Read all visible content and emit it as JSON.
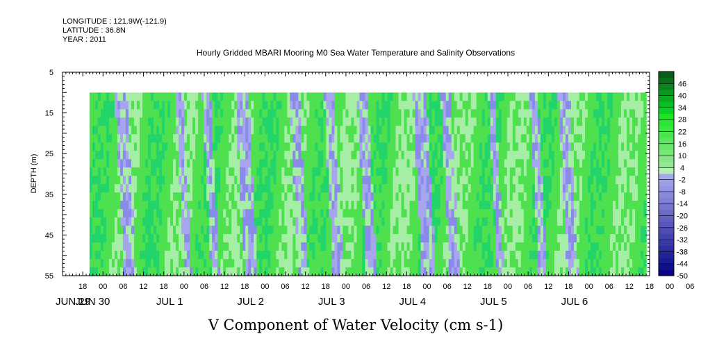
{
  "header": {
    "longitude": "LONGITUDE : 121.9W(-121.9)",
    "latitude": "LATITUDE : 36.8N",
    "year": "YEAR : 2011"
  },
  "chart_data": {
    "type": "heatmap",
    "title": "Hourly Gridded MBARI Mooring M0 Sea Water Temperature and Salinity Observations",
    "xlabel": "V Component of Water Velocity (cm s-1)",
    "ylabel": "DEPTH (m)",
    "y_ticks": [
      "5",
      "15",
      "25",
      "35",
      "45",
      "55"
    ],
    "ylim": [
      5,
      55
    ],
    "y_inverted": true,
    "hour_ticks": [
      "18",
      "00",
      "06",
      "12",
      "18",
      "00",
      "06",
      "12",
      "18",
      "00",
      "06",
      "12",
      "18",
      "00",
      "06",
      "12",
      "18",
      "00",
      "06",
      "12",
      "18",
      "00",
      "06",
      "12",
      "18",
      "00",
      "06",
      "12",
      "18",
      "00",
      "06",
      "12"
    ],
    "date_labels": [
      "JUN 29",
      "JUN 30",
      "JUL 1",
      "JUL 2",
      "JUL 3",
      "JUL 4",
      "JUL 5",
      "JUL 6"
    ],
    "x_start": "2011-06-29 12:00",
    "x_end": "2011-07-06 18:00",
    "data_start": "2011-06-29 20:00",
    "data_end": "2011-07-06 17:00",
    "data_depth_range": [
      10,
      55
    ],
    "colorbar_labels": [
      "46",
      "40",
      "34",
      "28",
      "22",
      "16",
      "10",
      "4",
      "-2",
      "-8",
      "-14",
      "-20",
      "-26",
      "-32",
      "-38",
      "-44",
      "-50"
    ],
    "colorbar_range": [
      -50,
      52
    ],
    "colors": {
      "neg_light": "#a6a6ee",
      "pos_light": "#a6eea6",
      "pos_mid": "#4ee04e",
      "pos_strong": "#22d46a",
      "neg_mid": "#8a8ae8"
    },
    "negative_bands_days": [
      [
        0.3,
        0.45
      ],
      [
        1.06,
        1.15
      ],
      [
        1.4,
        1.5
      ],
      [
        1.82,
        1.98
      ],
      [
        2.5,
        2.62
      ],
      [
        2.93,
        3.06
      ],
      [
        3.35,
        3.48
      ],
      [
        4.05,
        4.22
      ],
      [
        4.4,
        4.52
      ],
      [
        5.0,
        5.08
      ],
      [
        5.52,
        5.62
      ],
      [
        5.88,
        6.02
      ]
    ]
  }
}
